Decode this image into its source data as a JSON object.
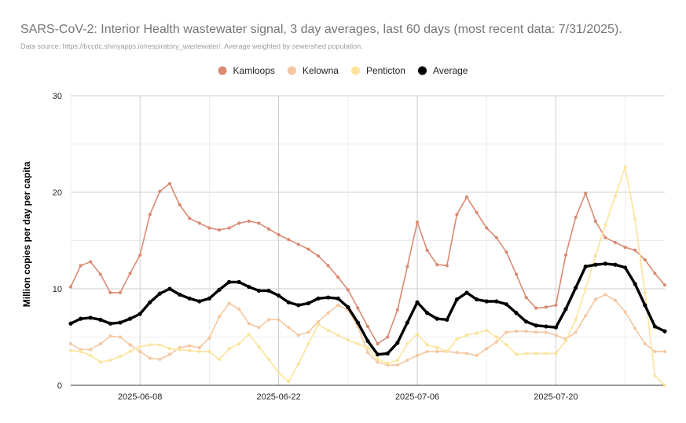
{
  "chart_data": {
    "type": "line",
    "title": "SARS-CoV-2: Interior Health wastewater signal, 3 day averages, last 60 days (most recent data: 7/31/2025).",
    "subtitle": "Data source: https://bccdc.shinyapps.io/respiratory_wastewater/. Average weighted by sewershed population.",
    "xlabel": "",
    "ylabel": "Million copies per day per capita",
    "ylim": [
      0,
      30
    ],
    "yticks": [
      0,
      10,
      20,
      30
    ],
    "x_start": "2025-06-01",
    "x_end": "2025-07-31",
    "xticks": [
      {
        "index": 7,
        "label": "2025-06-08"
      },
      {
        "index": 21,
        "label": "2025-06-22"
      },
      {
        "index": 35,
        "label": "2025-07-06"
      },
      {
        "index": 49,
        "label": "2025-07-20"
      }
    ],
    "grid": true,
    "legend_position": "top",
    "series": [
      {
        "name": "Kamloops",
        "color": "#d98a72",
        "width": 1.6,
        "marker": 4.2,
        "values": [
          10.2,
          12.4,
          12.8,
          11.5,
          9.6,
          9.6,
          11.6,
          13.5,
          17.7,
          20.1,
          20.9,
          18.7,
          17.3,
          16.8,
          16.3,
          16.1,
          16.3,
          16.8,
          17.0,
          16.8,
          16.2,
          15.6,
          15.1,
          14.6,
          14.1,
          13.4,
          12.4,
          11.2,
          9.9,
          8.0,
          6.1,
          4.3,
          5.0,
          7.8,
          12.3,
          16.9,
          14.0,
          12.5,
          12.4,
          17.7,
          19.5,
          17.9,
          16.3,
          15.3,
          13.8,
          11.5,
          9.1,
          8.0,
          8.1,
          8.3,
          13.5,
          17.4,
          19.9,
          17.0,
          15.3,
          14.8,
          14.3,
          14.0,
          13.0,
          11.6,
          10.4
        ]
      },
      {
        "name": "Kelowna",
        "color": "#f5c7a1",
        "width": 1.6,
        "marker": 4.2,
        "values": [
          4.3,
          3.7,
          3.7,
          4.3,
          5.1,
          5.0,
          4.2,
          3.5,
          2.8,
          2.7,
          3.2,
          3.9,
          4.1,
          3.9,
          4.9,
          7.1,
          8.5,
          7.9,
          6.4,
          6.0,
          6.8,
          6.8,
          6.0,
          5.2,
          5.5,
          6.6,
          7.5,
          8.3,
          7.8,
          6.1,
          3.4,
          2.4,
          2.1,
          2.1,
          2.6,
          3.1,
          3.5,
          3.5,
          3.5,
          3.4,
          3.3,
          3.1,
          3.8,
          4.5,
          5.5,
          5.6,
          5.6,
          5.5,
          5.5,
          5.2,
          4.8,
          5.5,
          7.2,
          8.9,
          9.4,
          8.8,
          7.6,
          5.9,
          4.3,
          3.5,
          3.5
        ]
      },
      {
        "name": "Penticton",
        "color": "#fce49c",
        "width": 1.6,
        "marker": 4.2,
        "values": [
          3.6,
          3.5,
          3.1,
          2.4,
          2.6,
          3.0,
          3.5,
          4.0,
          4.2,
          4.2,
          3.8,
          3.7,
          3.6,
          3.5,
          3.5,
          2.7,
          3.8,
          4.3,
          5.3,
          4.0,
          2.7,
          1.3,
          0.4,
          2.2,
          4.3,
          6.3,
          5.7,
          5.2,
          4.7,
          4.3,
          3.9,
          2.7,
          2.3,
          2.6,
          4.3,
          5.3,
          4.2,
          3.9,
          3.5,
          4.8,
          5.2,
          5.4,
          5.7,
          5.0,
          4.2,
          3.2,
          3.3,
          3.3,
          3.3,
          3.3,
          4.6,
          6.8,
          10.0,
          13.4,
          16.6,
          19.6,
          22.6,
          17.2,
          9.6,
          1.0,
          0.0
        ]
      },
      {
        "name": "Average",
        "color": "#000000",
        "width": 3.4,
        "marker": 5.2,
        "values": [
          6.4,
          6.9,
          7.0,
          6.8,
          6.4,
          6.5,
          6.9,
          7.4,
          8.6,
          9.5,
          10.0,
          9.4,
          9.0,
          8.7,
          9.0,
          9.9,
          10.7,
          10.7,
          10.2,
          9.8,
          9.8,
          9.3,
          8.6,
          8.3,
          8.5,
          9.0,
          9.1,
          9.0,
          8.1,
          6.5,
          4.6,
          3.2,
          3.3,
          4.4,
          6.5,
          8.6,
          7.5,
          6.9,
          6.8,
          8.9,
          9.6,
          8.9,
          8.7,
          8.7,
          8.4,
          7.5,
          6.6,
          6.2,
          6.1,
          6.0,
          7.9,
          10.1,
          12.3,
          12.5,
          12.6,
          12.5,
          12.2,
          10.5,
          8.3,
          6.1,
          5.6
        ]
      }
    ]
  }
}
